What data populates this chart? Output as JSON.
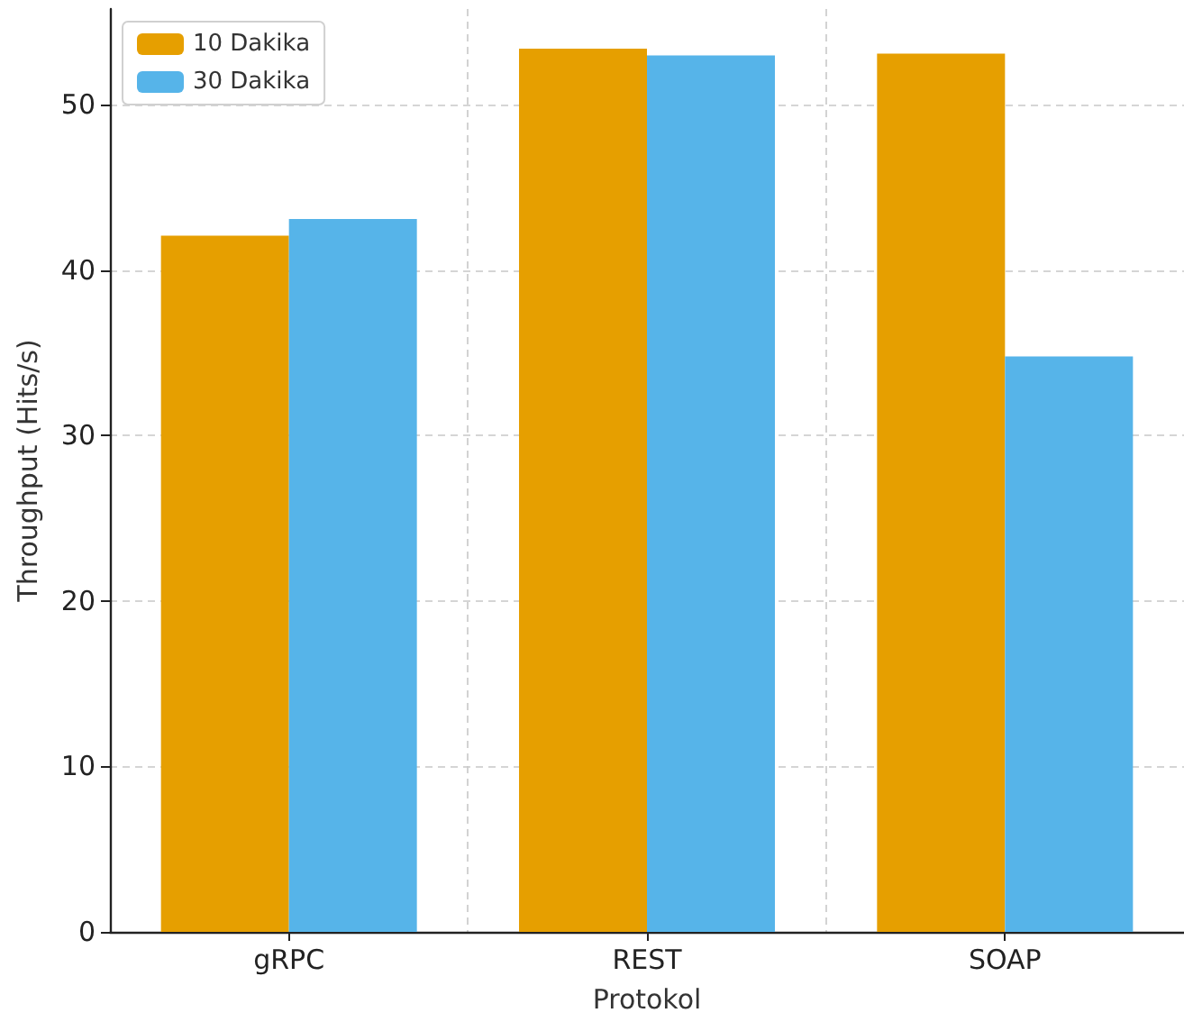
{
  "chart_data": {
    "type": "bar",
    "xlabel": "Protokol",
    "ylabel": "Throughput (Hits/s)",
    "categories": [
      "gRPC",
      "REST",
      "SOAP"
    ],
    "series": [
      {
        "name": "10 Dakika",
        "color": "#e69f00",
        "values": [
          42.1,
          53.4,
          53.1
        ]
      },
      {
        "name": "30 Dakika",
        "color": "#56b4e9",
        "values": [
          43.1,
          53.0,
          34.8
        ]
      }
    ],
    "ylim": [
      0,
      55.8
    ],
    "yticks": [
      0,
      10,
      20,
      30,
      40,
      50
    ],
    "grid": true,
    "legend": "top left"
  }
}
